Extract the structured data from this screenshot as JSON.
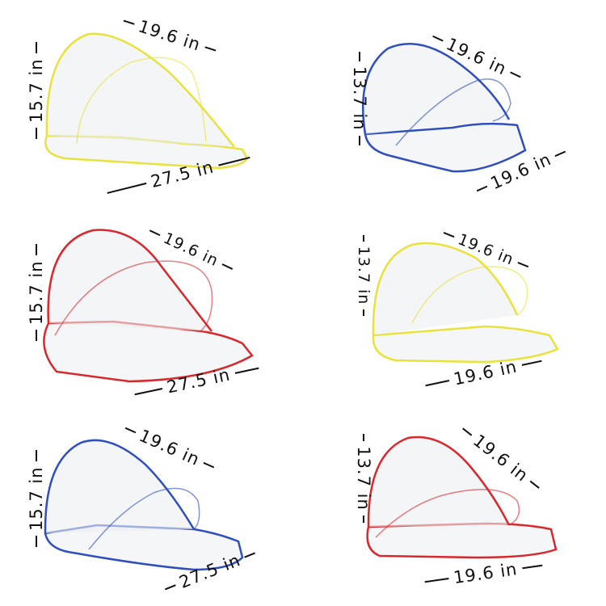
{
  "panels": [
    {
      "color": "#e8e23a",
      "height_label": "15.7 in",
      "depth_label": "19.6 in",
      "width_label": "27.5 in"
    },
    {
      "color": "#2f4fc0",
      "height_label": "13.7 in",
      "depth_label": "19.6 in",
      "width_label": "19.6 in"
    },
    {
      "color": "#d9282c",
      "height_label": "15.7 in",
      "depth_label": "19.6 in",
      "width_label": "27.5 in"
    },
    {
      "color": "#e8e23a",
      "height_label": "13.7 in",
      "depth_label": "19.6 in",
      "width_label": "19.6 in"
    },
    {
      "color": "#2f4fc0",
      "height_label": "15.7 in",
      "depth_label": "19.6 in",
      "width_label": "27.5 in"
    },
    {
      "color": "#d9282c",
      "height_label": "13.7 in",
      "depth_label": "19.6 in",
      "width_label": "19.6 in"
    }
  ]
}
